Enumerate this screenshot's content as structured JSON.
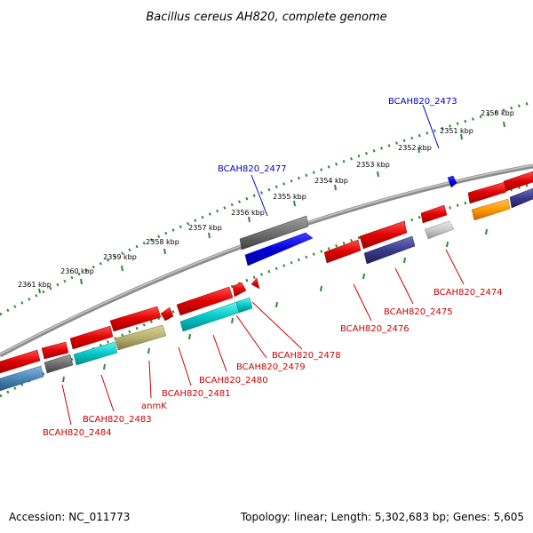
{
  "title": "Bacillus cereus AH820, complete genome",
  "footer": {
    "accession": "Accession: NC_011773",
    "topology": "Topology: linear; Length: 5,302,683 bp; Genes: 5,605"
  },
  "kbp_labels": [
    "2350 kbp",
    "2351 kbp",
    "2352 kbp",
    "2353 kbp",
    "2354 kbp",
    "2355 kbp",
    "2356 kbp",
    "2357 kbp",
    "2358 kbp",
    "2359 kbp",
    "2360 kbp",
    "2361 kbp"
  ],
  "genes_forward": [
    {
      "label": "BCAH820_2473",
      "strand": "+",
      "color": "#0000e0"
    },
    {
      "label": "BCAH820_2477",
      "strand": "+",
      "color": "#0000e0"
    }
  ],
  "genes_reverse": [
    {
      "label": "BCAH820_2474",
      "strand": "-",
      "color": "#d00000"
    },
    {
      "label": "BCAH820_2475",
      "strand": "-",
      "color": "#d00000"
    },
    {
      "label": "BCAH820_2476",
      "strand": "-",
      "color": "#d00000"
    },
    {
      "label": "BCAH820_2478",
      "strand": "-",
      "color": "#d00000"
    },
    {
      "label": "BCAH820_2479",
      "strand": "-",
      "color": "#d00000"
    },
    {
      "label": "BCAH820_2480",
      "strand": "-",
      "color": "#d00000"
    },
    {
      "label": "BCAH820_2481",
      "strand": "-",
      "color": "#d00000"
    },
    {
      "label": "anmK",
      "strand": "-",
      "color": "#d00000"
    },
    {
      "label": "BCAH820_2483",
      "strand": "-",
      "color": "#d00000"
    },
    {
      "label": "BCAH820_2484",
      "strand": "-",
      "color": "#d00000"
    }
  ],
  "colors": {
    "backbone": "#8c8c8c",
    "tick_dots": "#2e8b2e",
    "forward_gene": "#0000e0",
    "reverse_gene": "#e00000",
    "cyan_gene": "#00c8c8",
    "olive_gene": "#b8b070",
    "gray_gene": "#707070",
    "navy_gene": "#3a3a8c",
    "orange_gene": "#ff9900",
    "steel_gene": "#4a86b8"
  }
}
